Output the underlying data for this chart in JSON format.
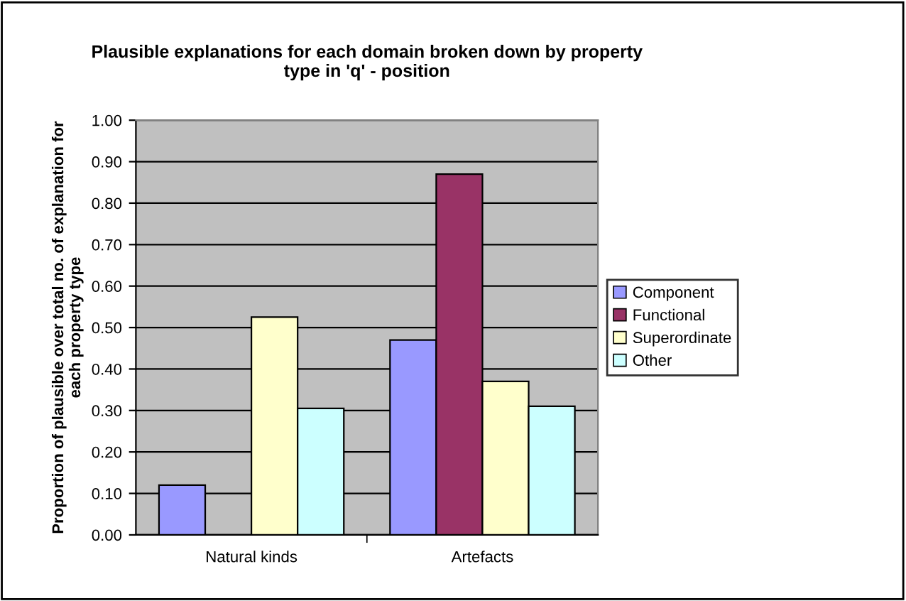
{
  "chart_data": {
    "type": "bar",
    "title": "Plausible explanations for each domain broken down by property\ntype in 'q' - position",
    "ylabel": "Proportion of plausible over total no. of explanation for\neach property type",
    "categories": [
      "Natural kinds",
      "Artefacts"
    ],
    "series": [
      {
        "name": "Component",
        "color": "#9999ff",
        "values": [
          0.12,
          0.47
        ]
      },
      {
        "name": "Functional",
        "color": "#993366",
        "values": [
          null,
          0.87
        ]
      },
      {
        "name": "Superordinate",
        "color": "#ffffcc",
        "values": [
          0.525,
          0.37
        ]
      },
      {
        "name": "Other",
        "color": "#ccffff",
        "values": [
          0.305,
          0.31
        ]
      }
    ],
    "ylim": [
      0,
      1
    ],
    "yticks": [
      {
        "value": 0,
        "label": "0.00"
      },
      {
        "value": 0.1,
        "label": "0.10"
      },
      {
        "value": 0.2,
        "label": "0.20"
      },
      {
        "value": 0.3,
        "label": "0.30"
      },
      {
        "value": 0.4,
        "label": "0.40"
      },
      {
        "value": 0.5,
        "label": "0.50"
      },
      {
        "value": 0.6,
        "label": "0.60"
      },
      {
        "value": 0.7,
        "label": "0.70"
      },
      {
        "value": 0.8,
        "label": "0.80"
      },
      {
        "value": 0.9,
        "label": "0.90"
      },
      {
        "value": 1,
        "label": "1.00"
      }
    ],
    "grid": "y",
    "legend": "right"
  }
}
